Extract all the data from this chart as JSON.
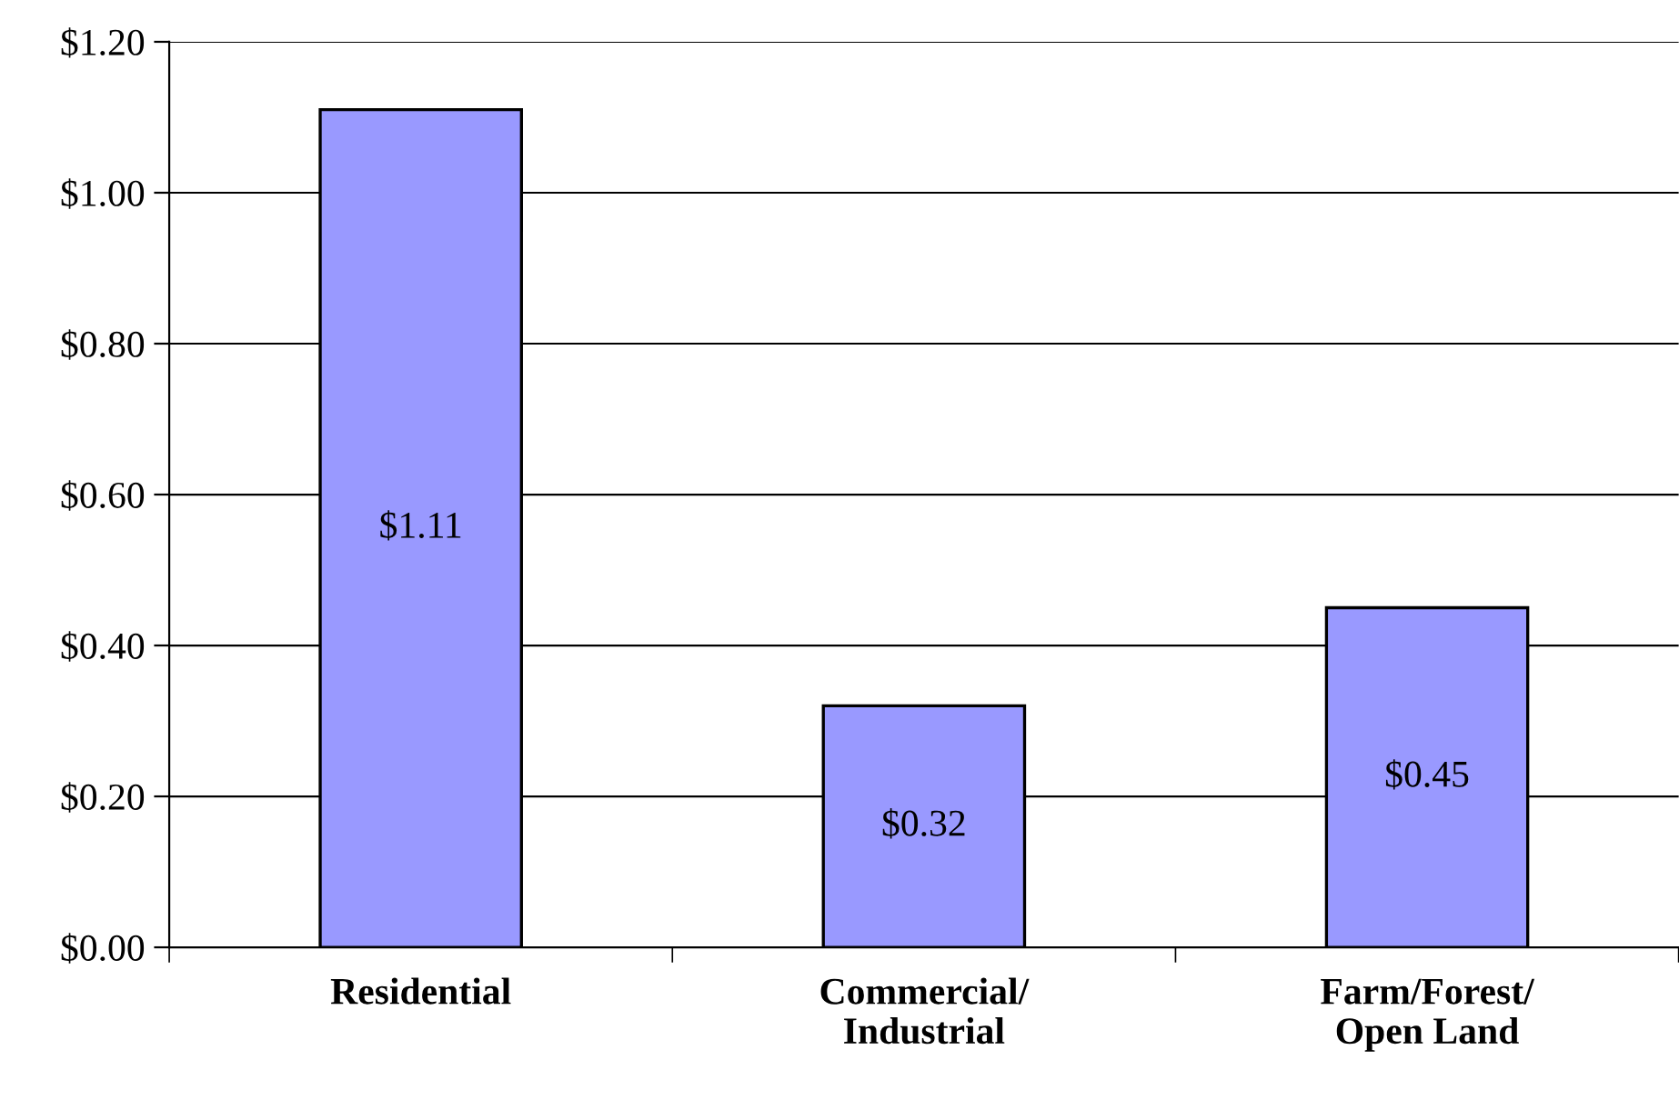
{
  "chart_data": {
    "type": "bar",
    "categories": [
      "Residential",
      "Commercial/\nIndustrial",
      "Farm/Forest/\nOpen Land"
    ],
    "values": [
      1.11,
      0.32,
      0.45
    ],
    "color": "#9999ff",
    "value_labels": [
      "$1.11",
      "$0.32",
      "$0.45"
    ],
    "ylim": [
      0,
      1.2
    ],
    "yticks": [
      {
        "value": 0,
        "label": "$0.00"
      },
      {
        "value": 0.2,
        "label": "$0.20"
      },
      {
        "value": 0.4,
        "label": "$0.40"
      },
      {
        "value": 0.6,
        "label": "$0.60"
      },
      {
        "value": 0.8,
        "label": "$0.80"
      },
      {
        "value": 1.0,
        "label": "$1.00"
      },
      {
        "value": 1.2,
        "label": "$1.20"
      }
    ],
    "grid": "y"
  }
}
